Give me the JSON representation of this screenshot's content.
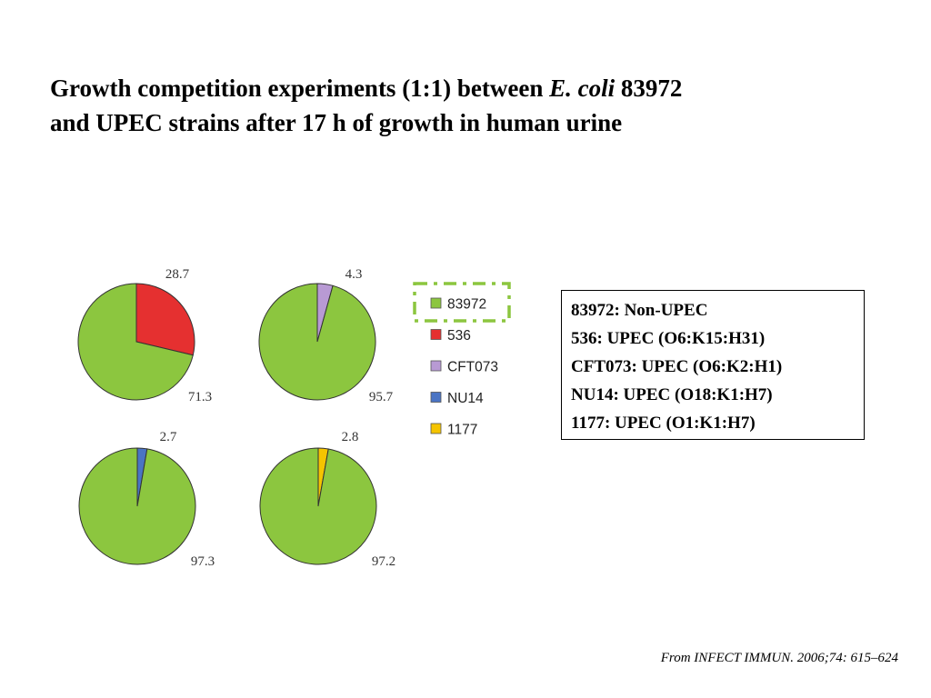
{
  "title": {
    "part1": "Growth competition experiments (1:1) between ",
    "italic": "E. coli",
    "part2": " 83972",
    "line2": "and UPEC strains after 17 h of growth in human urine"
  },
  "chart_data": {
    "type": "pie",
    "charts": [
      {
        "slices": [
          {
            "name": "536",
            "value": 28.7,
            "color": "#e53030"
          },
          {
            "name": "83972",
            "value": 71.3,
            "color": "#8cc63f"
          }
        ]
      },
      {
        "slices": [
          {
            "name": "CFT073",
            "value": 4.3,
            "color": "#b89ad4"
          },
          {
            "name": "83972",
            "value": 95.7,
            "color": "#8cc63f"
          }
        ]
      },
      {
        "slices": [
          {
            "name": "NU14",
            "value": 2.7,
            "color": "#4a74c4"
          },
          {
            "name": "83972",
            "value": 97.3,
            "color": "#8cc63f"
          }
        ]
      },
      {
        "slices": [
          {
            "name": "1177",
            "value": 2.8,
            "color": "#f5c400"
          },
          {
            "name": "83972",
            "value": 97.2,
            "color": "#8cc63f"
          }
        ]
      }
    ],
    "legend": {
      "entries": [
        {
          "label": "83972",
          "color": "#8cc63f",
          "highlighted": true
        },
        {
          "label": "536",
          "color": "#e53030"
        },
        {
          "label": "CFT073",
          "color": "#b89ad4"
        },
        {
          "label": "NU14",
          "color": "#4a74c4"
        },
        {
          "label": "1177",
          "color": "#f5c400"
        }
      ],
      "highlight_color": "#8cc63f"
    }
  },
  "strain_info": [
    "83972: Non-UPEC",
    "536: UPEC (O6:K15:H31)",
    "CFT073: UPEC (O6:K2:H1)",
    "NU14: UPEC (O18:K1:H7)",
    "1177: UPEC (O1:K1:H7)"
  ],
  "citation": "From INFECT IMMUN. 2006;74: 615–624"
}
